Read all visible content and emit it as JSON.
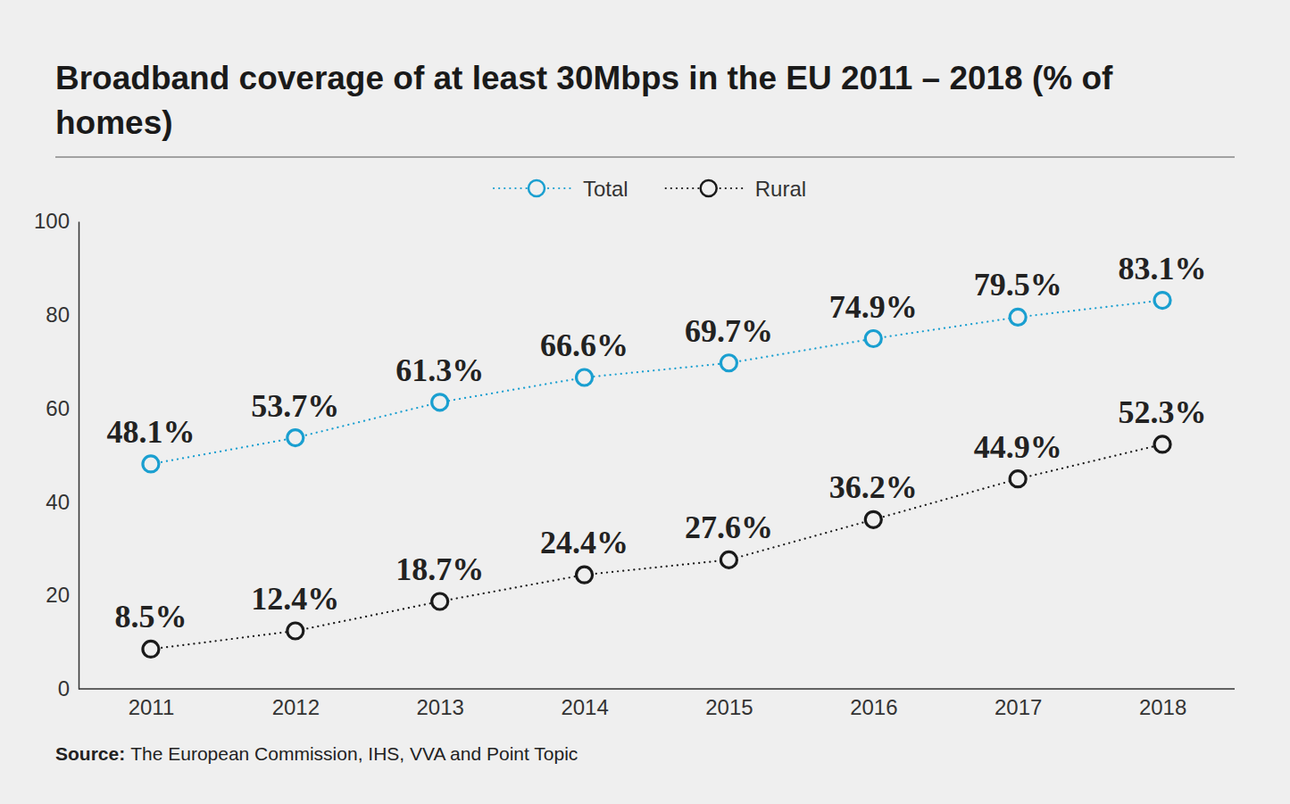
{
  "chart_data": {
    "type": "line",
    "title": "Broadband coverage of at least 30Mbps in the EU 2011 – 2018 (% of homes)",
    "source_label": "Source:",
    "source": "The European Commission, IHS, VVA and Point Topic",
    "categories": [
      "2011",
      "2012",
      "2013",
      "2014",
      "2015",
      "2016",
      "2017",
      "2018"
    ],
    "series": [
      {
        "name": "Total",
        "color": "#1a9fd0",
        "marker": "circle",
        "line_style": "dotted",
        "values": [
          48.1,
          53.7,
          61.3,
          66.6,
          69.7,
          74.9,
          79.5,
          83.1
        ],
        "value_labels": [
          "48.1%",
          "53.7%",
          "61.3%",
          "66.6%",
          "69.7%",
          "74.9%",
          "79.5%",
          "83.1%"
        ]
      },
      {
        "name": "Rural",
        "color": "#1a1a1a",
        "marker": "circle",
        "line_style": "dotted",
        "values": [
          8.5,
          12.4,
          18.7,
          24.4,
          27.6,
          36.2,
          44.9,
          52.3
        ],
        "value_labels": [
          "8.5%",
          "12.4%",
          "18.7%",
          "24.4%",
          "27.6%",
          "36.2%",
          "44.9%",
          "52.3%"
        ]
      }
    ],
    "ylim": [
      0,
      100
    ],
    "yticks": [
      0,
      20,
      40,
      60,
      80,
      100
    ],
    "grid": false,
    "legend": "top",
    "data_labels": true
  }
}
